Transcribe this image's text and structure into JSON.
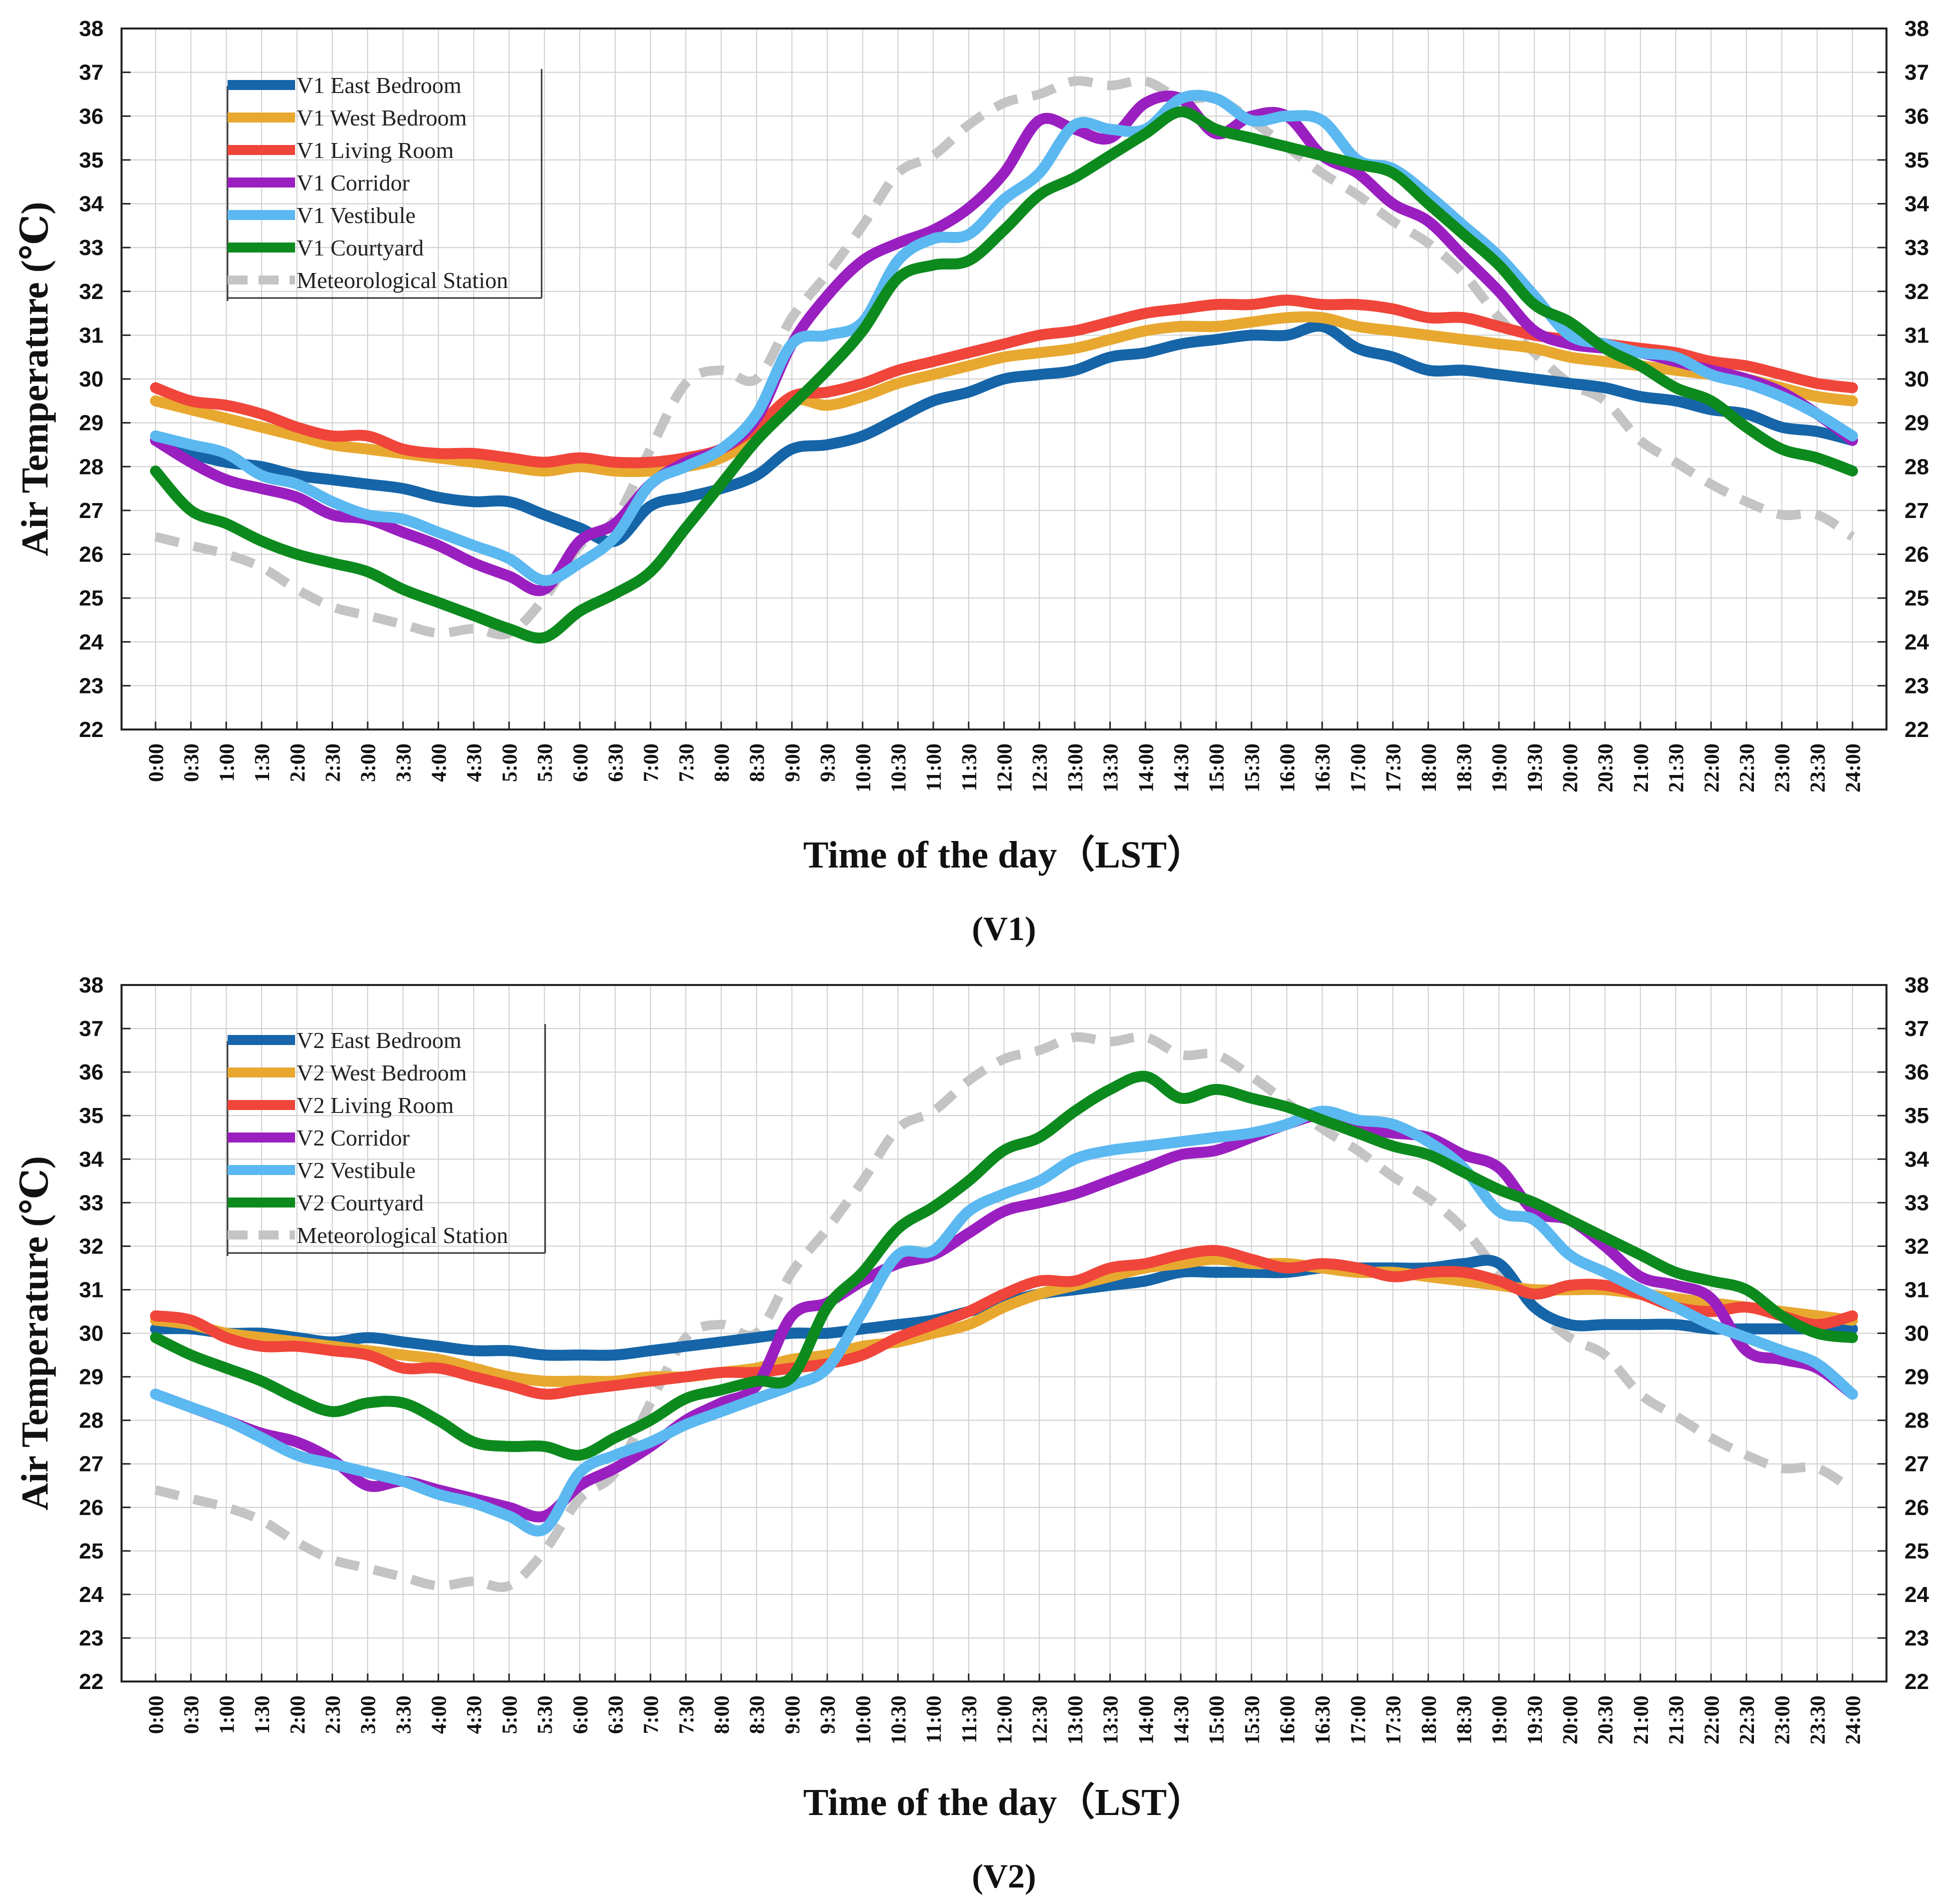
{
  "chart_data": [
    {
      "type": "line",
      "caption": "(V1)",
      "xlabel": "Time of the day（LST）",
      "ylabel": "Air Temperature (℃)",
      "ylim": [
        22,
        38
      ],
      "yticks": [
        "22",
        "23",
        "24",
        "25",
        "26",
        "27",
        "28",
        "29",
        "30",
        "31",
        "32",
        "33",
        "34",
        "35",
        "36",
        "37",
        "38"
      ],
      "x": [
        "0:00",
        "0:30",
        "1:00",
        "1:30",
        "2:00",
        "2:30",
        "3:00",
        "3:30",
        "4:00",
        "4:30",
        "5:00",
        "5:30",
        "6:00",
        "6:30",
        "7:00",
        "7:30",
        "8:00",
        "8:30",
        "9:00",
        "9:30",
        "10:00",
        "10:30",
        "11:00",
        "11:30",
        "12:00",
        "12:30",
        "13:00",
        "13:30",
        "14:00",
        "14:30",
        "15:00",
        "15:30",
        "16:00",
        "16:30",
        "17:00",
        "17:30",
        "18:00",
        "18:30",
        "19:00",
        "19:30",
        "20:00",
        "20:30",
        "21:00",
        "21:30",
        "22:00",
        "22:30",
        "23:00",
        "23:30",
        "24:00"
      ],
      "grid": true,
      "legend_position": "top-left",
      "series": [
        {
          "name": "V1 East Bedroom",
          "color": "#1565a8",
          "dash": false,
          "values": [
            28.6,
            28.3,
            28.1,
            28.0,
            27.8,
            27.7,
            27.6,
            27.5,
            27.3,
            27.2,
            27.2,
            26.9,
            26.6,
            26.3,
            27.1,
            27.3,
            27.5,
            27.8,
            28.4,
            28.5,
            28.7,
            29.1,
            29.5,
            29.7,
            30.0,
            30.1,
            30.2,
            30.5,
            30.6,
            30.8,
            30.9,
            31.0,
            31.0,
            31.2,
            30.7,
            30.5,
            30.2,
            30.2,
            30.1,
            30.0,
            29.9,
            29.8,
            29.6,
            29.5,
            29.3,
            29.2,
            28.9,
            28.8,
            28.6
          ]
        },
        {
          "name": "V1 West Bedroom",
          "color": "#e8a830",
          "dash": false,
          "values": [
            29.5,
            29.3,
            29.1,
            28.9,
            28.7,
            28.5,
            28.4,
            28.3,
            28.2,
            28.1,
            28.0,
            27.9,
            28.0,
            27.9,
            27.9,
            28.0,
            28.2,
            28.7,
            29.5,
            29.4,
            29.6,
            29.9,
            30.1,
            30.3,
            30.5,
            30.6,
            30.7,
            30.9,
            31.1,
            31.2,
            31.2,
            31.3,
            31.4,
            31.4,
            31.2,
            31.1,
            31.0,
            30.9,
            30.8,
            30.7,
            30.5,
            30.4,
            30.3,
            30.2,
            30.1,
            30.0,
            29.8,
            29.6,
            29.5
          ]
        },
        {
          "name": "V1 Living Room",
          "color": "#f0453a",
          "dash": false,
          "values": [
            29.8,
            29.5,
            29.4,
            29.2,
            28.9,
            28.7,
            28.7,
            28.4,
            28.3,
            28.3,
            28.2,
            28.1,
            28.2,
            28.1,
            28.1,
            28.2,
            28.4,
            28.9,
            29.6,
            29.7,
            29.9,
            30.2,
            30.4,
            30.6,
            30.8,
            31.0,
            31.1,
            31.3,
            31.5,
            31.6,
            31.7,
            31.7,
            31.8,
            31.7,
            31.7,
            31.6,
            31.4,
            31.4,
            31.2,
            31.0,
            30.9,
            30.8,
            30.7,
            30.6,
            30.4,
            30.3,
            30.1,
            29.9,
            29.8
          ]
        },
        {
          "name": "V1 Corridor",
          "color": "#9a1fc0",
          "dash": false,
          "values": [
            28.6,
            28.1,
            27.7,
            27.5,
            27.3,
            26.9,
            26.8,
            26.5,
            26.2,
            25.8,
            25.5,
            25.2,
            26.3,
            26.7,
            27.6,
            28.1,
            28.4,
            29.1,
            30.8,
            31.9,
            32.7,
            33.1,
            33.4,
            33.9,
            34.7,
            35.9,
            35.7,
            35.5,
            36.3,
            36.4,
            35.6,
            36.0,
            36.0,
            35.1,
            34.7,
            34.0,
            33.6,
            32.8,
            32.0,
            31.1,
            30.8,
            30.7,
            30.6,
            30.4,
            30.2,
            30.0,
            29.7,
            29.2,
            28.6
          ]
        },
        {
          "name": "V1 Vestibule",
          "color": "#5bb8f0",
          "dash": false,
          "values": [
            28.7,
            28.5,
            28.3,
            27.8,
            27.6,
            27.2,
            26.9,
            26.8,
            26.5,
            26.2,
            25.9,
            25.4,
            25.8,
            26.4,
            27.6,
            28.0,
            28.4,
            29.2,
            30.8,
            31.0,
            31.3,
            32.7,
            33.2,
            33.3,
            34.1,
            34.7,
            35.8,
            35.7,
            35.7,
            36.4,
            36.4,
            35.9,
            36.0,
            35.9,
            35.0,
            34.8,
            34.2,
            33.5,
            32.8,
            31.9,
            31.0,
            30.8,
            30.6,
            30.5,
            30.1,
            29.9,
            29.6,
            29.2,
            28.7
          ]
        },
        {
          "name": "V1 Courtyard",
          "color": "#0d8a1e",
          "dash": false,
          "values": [
            27.9,
            27.0,
            26.7,
            26.3,
            26.0,
            25.8,
            25.6,
            25.2,
            24.9,
            24.6,
            24.3,
            24.1,
            24.7,
            25.1,
            25.6,
            26.6,
            27.6,
            28.6,
            29.4,
            30.2,
            31.1,
            32.3,
            32.6,
            32.7,
            33.4,
            34.2,
            34.6,
            35.1,
            35.6,
            36.1,
            35.7,
            35.5,
            35.3,
            35.1,
            34.9,
            34.7,
            34.0,
            33.3,
            32.6,
            31.7,
            31.3,
            30.7,
            30.3,
            29.8,
            29.5,
            28.9,
            28.4,
            28.2,
            27.9
          ]
        },
        {
          "name": "Meteorological Station",
          "color": "#c4c4c4",
          "dash": true,
          "values": [
            26.4,
            26.2,
            26.0,
            25.7,
            25.2,
            24.8,
            24.6,
            24.4,
            24.2,
            24.3,
            24.2,
            25.0,
            26.2,
            26.8,
            28.4,
            29.9,
            30.2,
            30.0,
            31.4,
            32.4,
            33.5,
            34.7,
            35.1,
            35.8,
            36.3,
            36.5,
            36.8,
            36.7,
            36.8,
            36.4,
            36.4,
            35.9,
            35.3,
            34.7,
            34.2,
            33.6,
            33.1,
            32.4,
            31.4,
            30.6,
            29.9,
            29.5,
            28.6,
            28.1,
            27.6,
            27.2,
            26.9,
            26.9,
            26.4
          ]
        }
      ]
    },
    {
      "type": "line",
      "caption": "(V2)",
      "xlabel": "Time of the day（LST）",
      "ylabel": "Air Temperature (℃)",
      "ylim": [
        22,
        38
      ],
      "yticks": [
        "22",
        "23",
        "24",
        "25",
        "26",
        "27",
        "28",
        "29",
        "30",
        "31",
        "32",
        "33",
        "34",
        "35",
        "36",
        "37",
        "38"
      ],
      "x": [
        "0:00",
        "0:30",
        "1:00",
        "1:30",
        "2:00",
        "2:30",
        "3:00",
        "3:30",
        "4:00",
        "4:30",
        "5:00",
        "5:30",
        "6:00",
        "6:30",
        "7:00",
        "7:30",
        "8:00",
        "8:30",
        "9:00",
        "9:30",
        "10:00",
        "10:30",
        "11:00",
        "11:30",
        "12:00",
        "12:30",
        "13:00",
        "13:30",
        "14:00",
        "14:30",
        "15:00",
        "15:30",
        "16:00",
        "16:30",
        "17:00",
        "17:30",
        "18:00",
        "18:30",
        "19:00",
        "19:30",
        "20:00",
        "20:30",
        "21:00",
        "21:30",
        "22:00",
        "22:30",
        "23:00",
        "23:30",
        "24:00"
      ],
      "grid": true,
      "legend_position": "top-left",
      "series": [
        {
          "name": "V2 East Bedroom",
          "color": "#1565a8",
          "dash": false,
          "values": [
            30.1,
            30.1,
            30.0,
            30.0,
            29.9,
            29.8,
            29.9,
            29.8,
            29.7,
            29.6,
            29.6,
            29.5,
            29.5,
            29.5,
            29.6,
            29.7,
            29.8,
            29.9,
            30.0,
            30.0,
            30.1,
            30.2,
            30.3,
            30.5,
            30.7,
            30.9,
            31.0,
            31.1,
            31.2,
            31.4,
            31.4,
            31.4,
            31.4,
            31.5,
            31.5,
            31.5,
            31.5,
            31.6,
            31.6,
            30.6,
            30.2,
            30.2,
            30.2,
            30.2,
            30.1,
            30.1,
            30.1,
            30.1,
            30.1
          ]
        },
        {
          "name": "V2 West Bedroom",
          "color": "#e8a830",
          "dash": false,
          "values": [
            30.3,
            30.2,
            30.0,
            29.9,
            29.8,
            29.7,
            29.6,
            29.5,
            29.4,
            29.2,
            29.0,
            28.9,
            28.9,
            28.9,
            29.0,
            29.0,
            29.1,
            29.2,
            29.4,
            29.5,
            29.7,
            29.8,
            30.0,
            30.2,
            30.6,
            30.9,
            31.1,
            31.3,
            31.5,
            31.6,
            31.7,
            31.6,
            31.6,
            31.5,
            31.4,
            31.4,
            31.3,
            31.2,
            31.1,
            31.0,
            31.0,
            31.0,
            30.9,
            30.8,
            30.7,
            30.6,
            30.5,
            30.4,
            30.3
          ]
        },
        {
          "name": "V2 Living Room",
          "color": "#f0453a",
          "dash": false,
          "values": [
            30.4,
            30.3,
            29.9,
            29.7,
            29.7,
            29.6,
            29.5,
            29.2,
            29.2,
            29.0,
            28.8,
            28.6,
            28.7,
            28.8,
            28.9,
            29.0,
            29.1,
            29.1,
            29.2,
            29.3,
            29.5,
            29.9,
            30.2,
            30.5,
            30.9,
            31.2,
            31.2,
            31.5,
            31.6,
            31.8,
            31.9,
            31.7,
            31.5,
            31.6,
            31.5,
            31.3,
            31.4,
            31.4,
            31.2,
            30.9,
            31.1,
            31.1,
            30.9,
            30.6,
            30.5,
            30.6,
            30.4,
            30.2,
            30.4
          ]
        },
        {
          "name": "V2 Corridor",
          "color": "#9a1fc0",
          "dash": false,
          "values": [
            28.6,
            28.3,
            28.0,
            27.7,
            27.5,
            27.1,
            26.5,
            26.6,
            26.4,
            26.2,
            26.0,
            25.8,
            26.5,
            26.9,
            27.4,
            28.0,
            28.4,
            28.8,
            30.4,
            30.7,
            31.2,
            31.6,
            31.8,
            32.3,
            32.8,
            33.0,
            33.2,
            33.5,
            33.8,
            34.1,
            34.2,
            34.5,
            34.8,
            35.0,
            34.7,
            34.6,
            34.5,
            34.1,
            33.8,
            32.8,
            32.6,
            32.0,
            31.3,
            31.1,
            30.8,
            29.6,
            29.4,
            29.2,
            28.6
          ]
        },
        {
          "name": "V2 Vestibule",
          "color": "#5bb8f0",
          "dash": false,
          "values": [
            28.6,
            28.3,
            28.0,
            27.6,
            27.2,
            27.0,
            26.8,
            26.6,
            26.3,
            26.1,
            25.8,
            25.5,
            26.8,
            27.2,
            27.5,
            27.9,
            28.2,
            28.5,
            28.8,
            29.2,
            30.5,
            31.8,
            31.9,
            32.8,
            33.2,
            33.5,
            34.0,
            34.2,
            34.3,
            34.4,
            34.5,
            34.6,
            34.8,
            35.1,
            34.9,
            34.8,
            34.4,
            33.8,
            32.8,
            32.6,
            31.8,
            31.4,
            31.0,
            30.6,
            30.2,
            29.9,
            29.6,
            29.3,
            28.6
          ]
        },
        {
          "name": "V2 Courtyard",
          "color": "#0d8a1e",
          "dash": false,
          "values": [
            29.9,
            29.5,
            29.2,
            28.9,
            28.5,
            28.2,
            28.4,
            28.4,
            28.0,
            27.5,
            27.4,
            27.4,
            27.2,
            27.6,
            28.0,
            28.5,
            28.7,
            28.9,
            29.0,
            30.6,
            31.4,
            32.4,
            32.9,
            33.5,
            34.2,
            34.5,
            35.1,
            35.6,
            35.9,
            35.4,
            35.6,
            35.4,
            35.2,
            34.9,
            34.6,
            34.3,
            34.1,
            33.7,
            33.3,
            33.0,
            32.6,
            32.2,
            31.8,
            31.4,
            31.2,
            31.0,
            30.4,
            30.0,
            29.9
          ]
        },
        {
          "name": "Meteorological Station",
          "color": "#c4c4c4",
          "dash": true,
          "values": [
            26.4,
            26.2,
            26.0,
            25.7,
            25.2,
            24.8,
            24.6,
            24.4,
            24.2,
            24.3,
            24.2,
            25.0,
            26.2,
            26.8,
            28.4,
            29.9,
            30.2,
            30.0,
            31.4,
            32.4,
            33.5,
            34.7,
            35.1,
            35.8,
            36.3,
            36.5,
            36.8,
            36.7,
            36.8,
            36.4,
            36.4,
            35.9,
            35.3,
            34.7,
            34.2,
            33.6,
            33.1,
            32.4,
            31.4,
            30.6,
            29.9,
            29.5,
            28.6,
            28.1,
            27.6,
            27.2,
            26.9,
            26.9,
            26.4
          ]
        }
      ]
    }
  ]
}
